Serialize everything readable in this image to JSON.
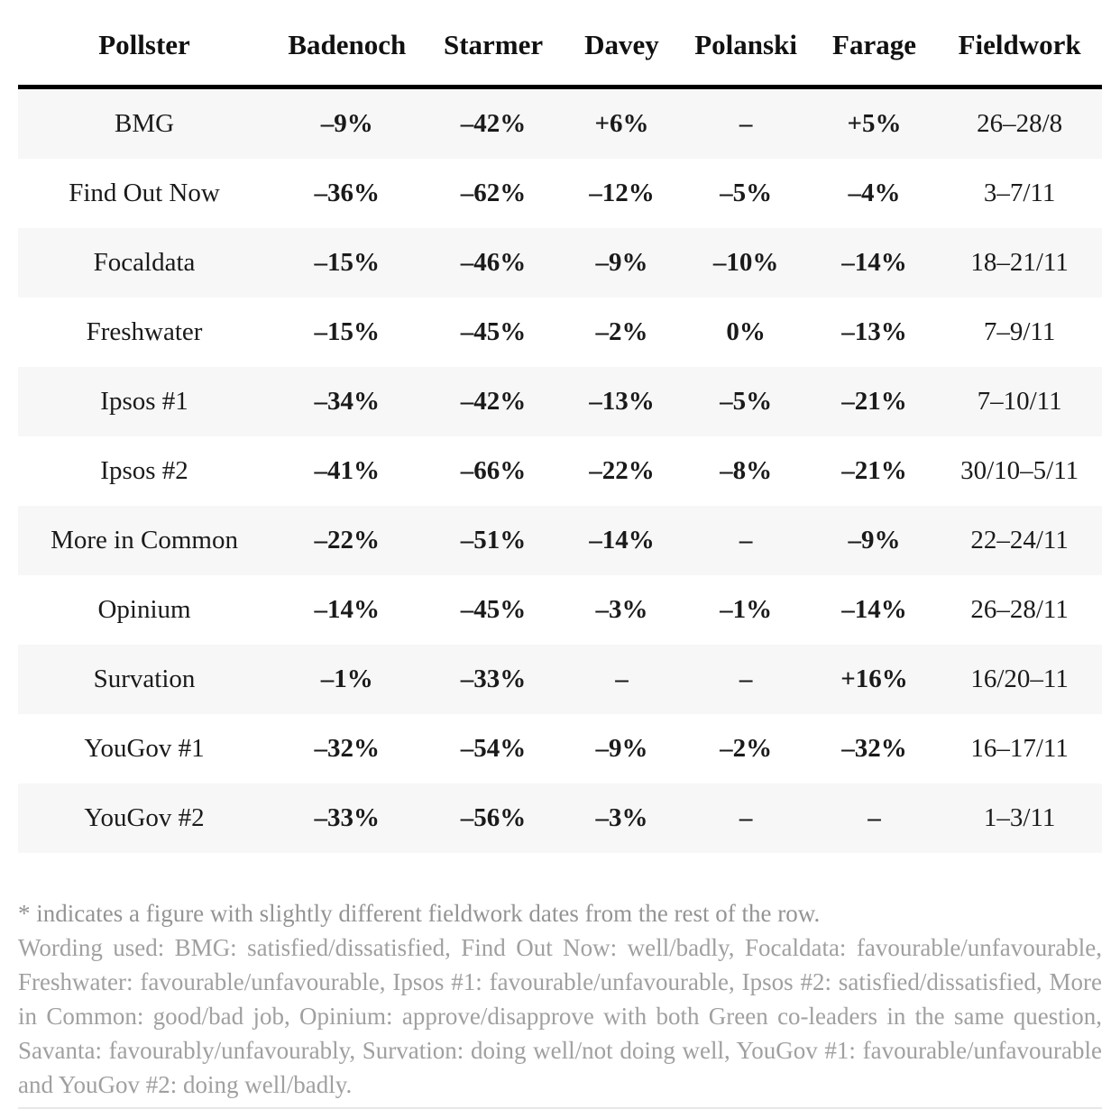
{
  "chart_data": {
    "type": "table",
    "columns": [
      "Pollster",
      "Badenoch",
      "Starmer",
      "Davey",
      "Polanski",
      "Farage",
      "Fieldwork"
    ],
    "rows": [
      [
        "BMG",
        "–9%",
        "–42%",
        "+6%",
        "–",
        "+5%",
        "26–28/8"
      ],
      [
        "Find Out Now",
        "–36%",
        "–62%",
        "–12%",
        "–5%",
        "–4%",
        "3–7/11"
      ],
      [
        "Focaldata",
        "–15%",
        "–46%",
        "–9%",
        "–10%",
        "–14%",
        "18–21/11"
      ],
      [
        "Freshwater",
        "–15%",
        "–45%",
        "–2%",
        "0%",
        "–13%",
        "7–9/11"
      ],
      [
        "Ipsos #1",
        "–34%",
        "–42%",
        "–13%",
        "–5%",
        "–21%",
        "7–10/11"
      ],
      [
        "Ipsos #2",
        "–41%",
        "–66%",
        "–22%",
        "–8%",
        "–21%",
        "30/10–5/11"
      ],
      [
        "More in Common",
        "–22%",
        "–51%",
        "–14%",
        "–",
        "–9%",
        "22–24/11"
      ],
      [
        "Opinium",
        "–14%",
        "–45%",
        "–3%",
        "–1%",
        "–14%",
        "26–28/11"
      ],
      [
        "Survation",
        "–1%",
        "–33%",
        "–",
        "–",
        "+16%",
        "16/20–11"
      ],
      [
        "YouGov #1",
        "–32%",
        "–54%",
        "–9%",
        "–2%",
        "–32%",
        "16–17/11"
      ],
      [
        "YouGov #2",
        "–33%",
        "–56%",
        "–3%",
        "–",
        "–",
        "1–3/11"
      ]
    ],
    "stripe_rows": "odd rows shaded",
    "title": ""
  },
  "footnotes": {
    "asterisk_note": "* indicates a figure with slightly different fieldwork dates from the rest of the row.",
    "wording_note": "Wording used: BMG: satisfied/dissatisfied, Find Out Now: well/badly, Focaldata: favourable/unfavourable, Freshwater: favourable/unfavourable, Ipsos #1: favourable/unfavourable, Ipsos #2: satisfied/dissatisfied, More in Common: good/bad job, Opinium: approve/disapprove with both Green co-leaders in the same question, Savanta: favourably/unfavourably, Survation: doing well/not doing well, YouGov #1: favourable/unfavourable and YouGov #2: doing well/badly."
  },
  "colors": {
    "row_stripe": "#f7f7f7",
    "header_rule": "#000000",
    "body_text": "#1a1a1a",
    "footnote_text": "#9e9e9e",
    "bottom_divider": "#e8e8e8"
  }
}
